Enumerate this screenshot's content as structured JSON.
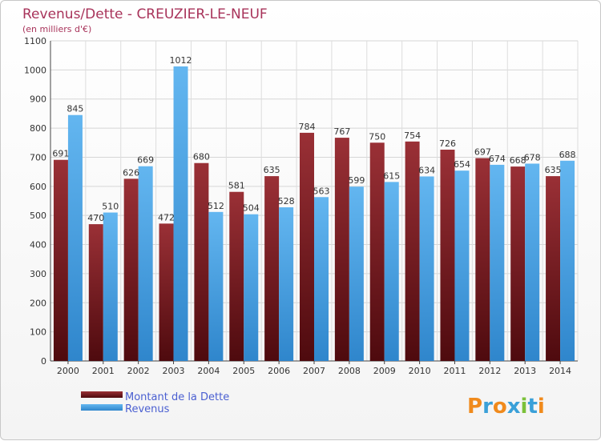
{
  "chart_data": {
    "type": "bar",
    "title": "Revenus/Dette - CREUZIER-LE-NEUF",
    "subtitle": "(en milliers d'€)",
    "categories": [
      "2000",
      "2001",
      "2002",
      "2003",
      "2004",
      "2005",
      "2006",
      "2007",
      "2008",
      "2009",
      "2010",
      "2011",
      "2012",
      "2013",
      "2014"
    ],
    "series": [
      {
        "name": "Montant de la Dette",
        "color": "#7a1a1f",
        "values": [
          691,
          470,
          626,
          472,
          680,
          581,
          635,
          784,
          767,
          750,
          754,
          726,
          697,
          668,
          635
        ]
      },
      {
        "name": "Revenus",
        "color": "#3d9be0",
        "values": [
          845,
          510,
          669,
          1012,
          512,
          504,
          528,
          563,
          599,
          615,
          634,
          654,
          674,
          678,
          688
        ]
      }
    ],
    "ylim": [
      0,
      1100
    ],
    "yticks": [
      0,
      100,
      200,
      300,
      400,
      500,
      600,
      700,
      800,
      900,
      1000,
      1100
    ],
    "grid": true,
    "legend": "bottom-left",
    "xlabel": "",
    "ylabel": ""
  },
  "logo": {
    "letters": [
      "P",
      "r",
      "o",
      "x",
      "i",
      "t",
      "i"
    ],
    "colors": [
      "#f08a1c",
      "#3aa0d8",
      "#f08a1c",
      "#3aa0d8",
      "#7cc13a",
      "#3aa0d8",
      "#f08a1c"
    ]
  }
}
